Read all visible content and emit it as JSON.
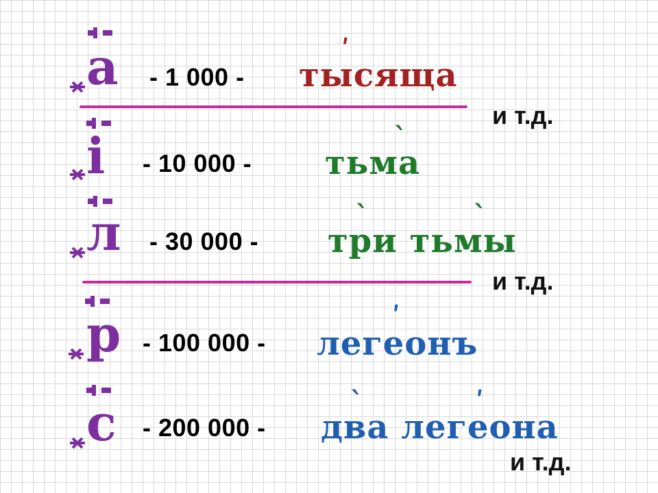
{
  "rows": [
    {
      "glyph": {
        "letter": "а",
        "icon": "titlo-mark-icon",
        "color": "#7d2fa0"
      },
      "number": "- 1 000 -",
      "word": "тысяща",
      "word_color": "#a32121"
    },
    {
      "glyph": {
        "letter": "і",
        "icon": "titlo-mark-icon",
        "color": "#7d2fa0"
      },
      "number": "- 10 000 -",
      "word": "тьма",
      "word_color": "#1f7a2c"
    },
    {
      "glyph": {
        "letter": "л",
        "icon": "titlo-mark-icon",
        "color": "#7d2fa0"
      },
      "number": "- 30 000 -",
      "word": "три тьмы",
      "word_color": "#1f7a2c"
    },
    {
      "glyph": {
        "letter": "р",
        "icon": "titlo-mark-icon",
        "color": "#7d2fa0"
      },
      "number": "- 100 000 -",
      "word": "легеонъ",
      "word_color": "#1f5eb0"
    },
    {
      "glyph": {
        "letter": "с",
        "icon": "titlo-mark-icon",
        "color": "#7d2fa0"
      },
      "number": "- 200 000 -",
      "word": "два легеона",
      "word_color": "#1f5eb0"
    }
  ],
  "etc_labels": [
    "и т.д.",
    "и т.д.",
    "и т.д."
  ],
  "divider_color": "#c72a9c",
  "number_color": "#000000"
}
